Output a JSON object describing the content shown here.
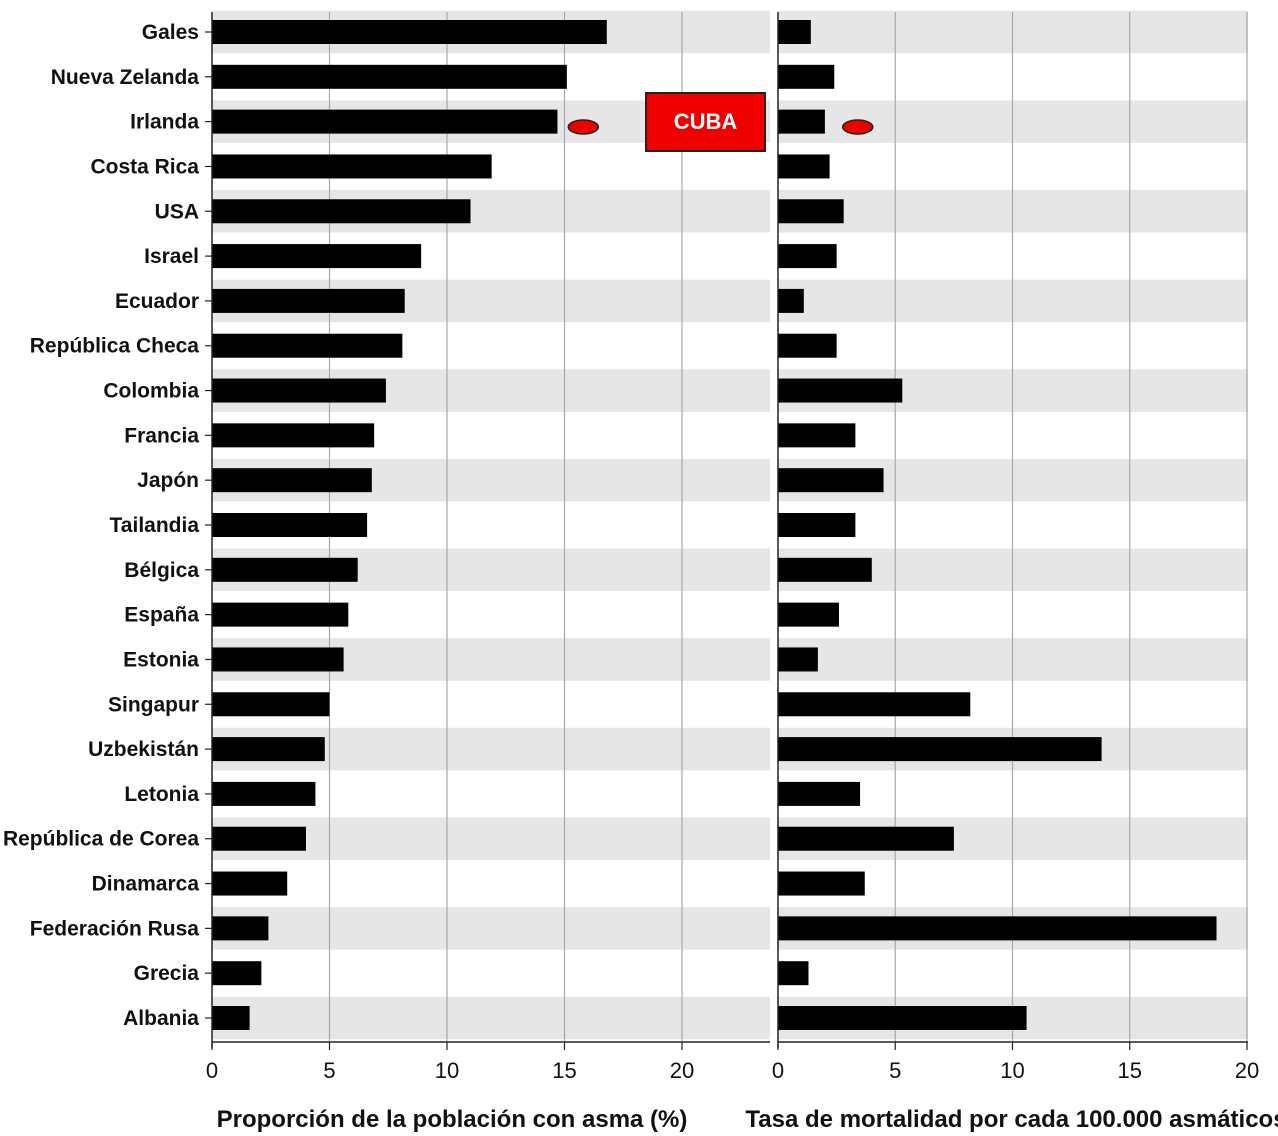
{
  "chart_data": [
    {
      "type": "bar",
      "orientation": "horizontal",
      "categories": [
        "Gales",
        "Nueva Zelanda",
        "Irlanda",
        "Costa Rica",
        "USA",
        "Israel",
        "Ecuador",
        "República Checa",
        "Colombia",
        "Francia",
        "Japón",
        "Tailandia",
        "Bélgica",
        "España",
        "Estonia",
        "Singapur",
        "Uzbekistán",
        "Letonia",
        "República de Corea",
        "Dinamarca",
        "Federación Rusa",
        "Grecia",
        "Albania"
      ],
      "values": [
        16.8,
        15.1,
        14.7,
        11.9,
        11.0,
        8.9,
        8.2,
        8.1,
        7.4,
        6.9,
        6.8,
        6.6,
        6.2,
        5.8,
        5.6,
        5.0,
        4.8,
        4.4,
        4.0,
        3.2,
        2.4,
        2.1,
        1.6
      ],
      "xlabel": "Proporción de la población con asma (%)",
      "ylabel": "",
      "xlim": [
        0,
        24
      ],
      "xticks": [
        "0",
        "5",
        "10",
        "15",
        "20"
      ],
      "grid": true,
      "marker": {
        "label": "CUBA",
        "value": 15.8,
        "between": [
          "Irlanda",
          "Costa Rica"
        ]
      }
    },
    {
      "type": "bar",
      "orientation": "horizontal",
      "categories": [
        "Gales",
        "Nueva Zelanda",
        "Irlanda",
        "Costa Rica",
        "USA",
        "Israel",
        "Ecuador",
        "República Checa",
        "Colombia",
        "Francia",
        "Japón",
        "Tailandia",
        "Bélgica",
        "España",
        "Estonia",
        "Singapur",
        "Uzbekistán",
        "Letonia",
        "República de Corea",
        "Dinamarca",
        "Federación Rusa",
        "Grecia",
        "Albania"
      ],
      "values": [
        1.4,
        2.4,
        2.0,
        2.2,
        2.8,
        2.5,
        1.1,
        2.5,
        5.3,
        3.3,
        4.5,
        3.3,
        4.0,
        2.6,
        1.7,
        8.2,
        13.8,
        3.5,
        7.5,
        3.7,
        18.7,
        1.3,
        10.6
      ],
      "xlabel": "Tasa de mortalidad por cada 100.000 asmáticos",
      "ylabel": "",
      "xlim": [
        0,
        20
      ],
      "xticks": [
        "0",
        "5",
        "10",
        "15",
        "20"
      ],
      "grid": true,
      "marker": {
        "label": "CUBA",
        "value": 3.4,
        "between": [
          "Irlanda",
          "Costa Rica"
        ]
      }
    }
  ],
  "annotation": {
    "label": "CUBA",
    "color": "#ee0000"
  },
  "colors": {
    "bar": "#000000",
    "band": "#e6e6e6",
    "grid": "#a8a8a8",
    "marker": "#ee0000"
  }
}
